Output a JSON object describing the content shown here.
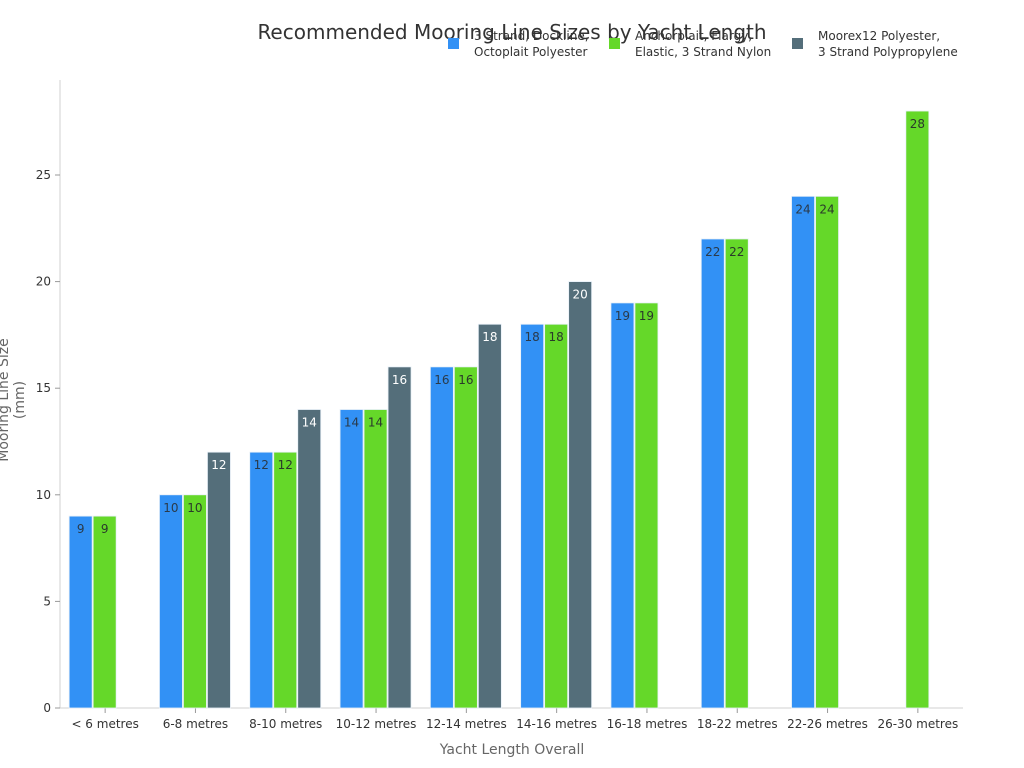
{
  "chart_data": {
    "type": "bar",
    "title": "Recommended Mooring Line Sizes by Yacht Length",
    "xlabel": "Yacht Length Overall",
    "ylabel": "Mooring Line Size (mm)",
    "ylim": [
      0,
      29
    ],
    "yticks": [
      0,
      5,
      10,
      15,
      20,
      25
    ],
    "grid": false,
    "legend_position": "top-right",
    "categories": [
      "< 6 metres",
      "6-8 metres",
      "8-10 metres",
      "10-12 metres",
      "12-14 metres",
      "14-16 metres",
      "16-18 metres",
      "18-22 metres",
      "22-26 metres",
      "26-30 metres"
    ],
    "series": [
      {
        "name": "3 Strand, Dockline,\nOctoplait Polyester",
        "color": "#3291F5",
        "label_color": "#2a3a4a",
        "values": [
          9,
          10,
          12,
          14,
          16,
          18,
          19,
          22,
          24,
          null
        ]
      },
      {
        "name": "Anchorplait, Flargy,\nElastic, 3 Strand Nylon",
        "color": "#65D829",
        "label_color": "#2a3a2a",
        "values": [
          9,
          10,
          12,
          14,
          16,
          18,
          19,
          22,
          24,
          28
        ]
      },
      {
        "name": "Moorex12 Polyester,\n3 Strand Polypropylene",
        "color": "#546E7A",
        "label_color": "#ffffff",
        "values": [
          null,
          12,
          14,
          16,
          18,
          20,
          null,
          null,
          null,
          null
        ]
      }
    ]
  }
}
